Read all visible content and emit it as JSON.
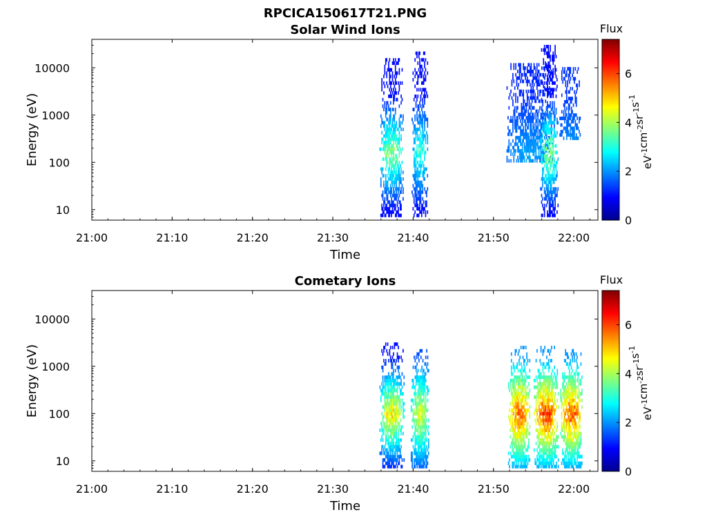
{
  "figure_title": "RPCICA150617T21.PNG",
  "colorbar": {
    "title": "Flux",
    "unit_parts": [
      "eV",
      "-1",
      "cm",
      "-2",
      "sr",
      "-1",
      "s",
      "-1"
    ],
    "min": 0,
    "max": 7.4,
    "ticks": [
      "0",
      "2",
      "4",
      "6"
    ],
    "colormap": "jet"
  },
  "chart_data": [
    {
      "type": "heatmap",
      "title": "Solar Wind Ions",
      "xlabel": "Time",
      "ylabel": "Energy (eV)",
      "x_tick_labels": [
        "21:00",
        "21:10",
        "21:20",
        "21:30",
        "21:40",
        "21:50",
        "22:00"
      ],
      "y_tick_labels": [
        "10",
        "100",
        "1000",
        "10000"
      ],
      "y_scale": "log",
      "ylim": [
        6,
        40000
      ],
      "xlim": [
        "21:00",
        "22:03"
      ],
      "clusters": [
        {
          "t_start": "21:35.8",
          "t_end": "21:38.7",
          "e_low": 7,
          "e_high": 14000,
          "flux_peak": 4.3,
          "flux_low": 1.0
        },
        {
          "t_start": "21:39.8",
          "t_end": "21:41.8",
          "e_low": 7,
          "e_high": 20000,
          "flux_peak": 3.5,
          "flux_low": 1.0
        },
        {
          "t_start": "21:51.5",
          "t_end": "21:57.5",
          "e_low": 100,
          "e_high": 12000,
          "flux_peak": 2.3,
          "flux_low": 1.2
        },
        {
          "t_start": "21:55.8",
          "t_end": "21:58.0",
          "e_low": 7,
          "e_high": 30000,
          "flux_peak": 4.4,
          "flux_low": 1.0
        },
        {
          "t_start": "21:58.2",
          "t_end": "22:00.8",
          "e_low": 300,
          "e_high": 10000,
          "flux_peak": 2.3,
          "flux_low": 1.3
        }
      ]
    },
    {
      "type": "heatmap",
      "title": "Cometary Ions",
      "xlabel": "Time",
      "ylabel": "Energy (eV)",
      "x_tick_labels": [
        "21:00",
        "21:10",
        "21:20",
        "21:30",
        "21:40",
        "21:50",
        "22:00"
      ],
      "y_tick_labels": [
        "10",
        "100",
        "1000",
        "10000"
      ],
      "y_scale": "log",
      "ylim": [
        6,
        40000
      ],
      "xlim": [
        "21:00",
        "22:03"
      ],
      "clusters": [
        {
          "t_start": "21:35.8",
          "t_end": "21:38.8",
          "e_low": 7,
          "e_high": 3000,
          "flux_peak": 5.5,
          "flux_low": 1.0
        },
        {
          "t_start": "21:39.7",
          "t_end": "21:41.9",
          "e_low": 7,
          "e_high": 2000,
          "flux_peak": 4.9,
          "flux_low": 1.5
        },
        {
          "t_start": "21:51.8",
          "t_end": "21:54.5",
          "e_low": 7,
          "e_high": 2500,
          "flux_peak": 6.6,
          "flux_low": 2.0
        },
        {
          "t_start": "21:55.0",
          "t_end": "21:58.0",
          "e_low": 7,
          "e_high": 2500,
          "flux_peak": 6.8,
          "flux_low": 2.0
        },
        {
          "t_start": "21:58.3",
          "t_end": "22:01.0",
          "e_low": 7,
          "e_high": 2000,
          "flux_peak": 6.6,
          "flux_low": 2.0
        }
      ]
    }
  ]
}
